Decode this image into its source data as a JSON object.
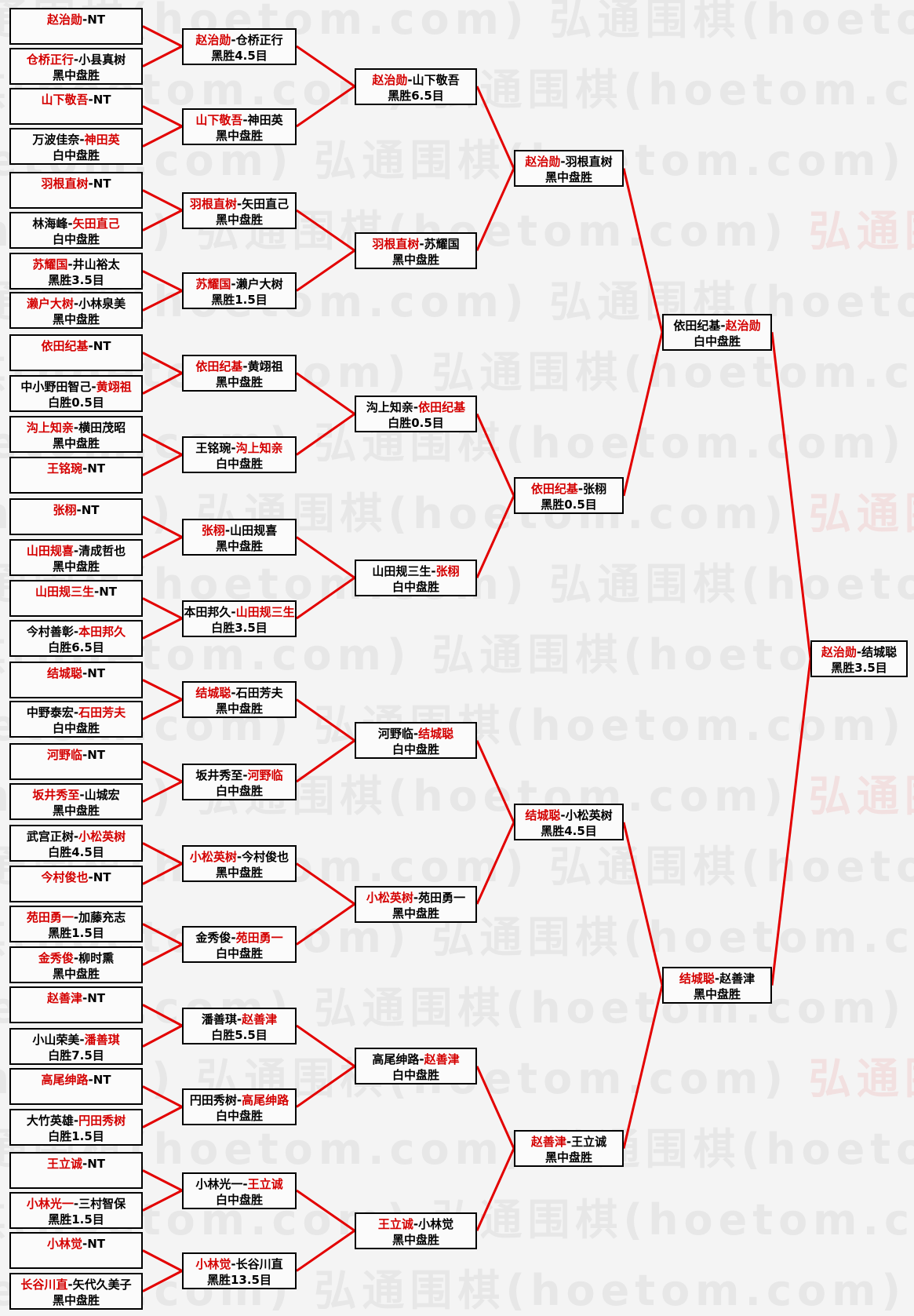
{
  "watermark": {
    "text": "弘通围棋(hoetom.com)"
  },
  "separator": "-",
  "colors": {
    "winner": "#d40000",
    "loser": "#000000",
    "line": "#e30000",
    "border": "#000000"
  },
  "bracket": {
    "rounds": [
      {
        "name": "round-1",
        "matches": [
          {
            "p1": "赵治勋",
            "p1_red": true,
            "p2": "NT",
            "p2_red": false,
            "result": ""
          },
          {
            "p1": "仓桥正行",
            "p1_red": true,
            "p2": "小县真树",
            "p2_red": false,
            "result": "黑中盘胜"
          },
          {
            "p1": "山下敬吾",
            "p1_red": true,
            "p2": "NT",
            "p2_red": false,
            "result": ""
          },
          {
            "p1": "万波佳奈",
            "p1_red": false,
            "p2": "神田英",
            "p2_red": true,
            "result": "白中盘胜"
          },
          {
            "p1": "羽根直树",
            "p1_red": true,
            "p2": "NT",
            "p2_red": false,
            "result": ""
          },
          {
            "p1": "林海峰",
            "p1_red": false,
            "p2": "矢田直己",
            "p2_red": true,
            "result": "白中盘胜"
          },
          {
            "p1": "苏耀国",
            "p1_red": true,
            "p2": "井山裕太",
            "p2_red": false,
            "result": "黑胜3.5目"
          },
          {
            "p1": "濑户大树",
            "p1_red": true,
            "p2": "小林泉美",
            "p2_red": false,
            "result": "黑中盘胜"
          },
          {
            "p1": "依田纪基",
            "p1_red": true,
            "p2": "NT",
            "p2_red": false,
            "result": ""
          },
          {
            "p1": "中小野田智己",
            "p1_red": false,
            "p2": "黄翊祖",
            "p2_red": true,
            "result": "白胜0.5目"
          },
          {
            "p1": "沟上知亲",
            "p1_red": true,
            "p2": "横田茂昭",
            "p2_red": false,
            "result": "黑中盘胜"
          },
          {
            "p1": "王铭琬",
            "p1_red": true,
            "p2": "NT",
            "p2_red": false,
            "result": ""
          },
          {
            "p1": "张栩",
            "p1_red": true,
            "p2": "NT",
            "p2_red": false,
            "result": ""
          },
          {
            "p1": "山田规喜",
            "p1_red": true,
            "p2": "清成哲也",
            "p2_red": false,
            "result": "黑中盘胜"
          },
          {
            "p1": "山田规三生",
            "p1_red": true,
            "p2": "NT",
            "p2_red": false,
            "result": ""
          },
          {
            "p1": "今村善彰",
            "p1_red": false,
            "p2": "本田邦久",
            "p2_red": true,
            "result": "白胜6.5目"
          },
          {
            "p1": "结城聪",
            "p1_red": true,
            "p2": "NT",
            "p2_red": false,
            "result": ""
          },
          {
            "p1": "中野泰宏",
            "p1_red": false,
            "p2": "石田芳夫",
            "p2_red": true,
            "result": "白中盘胜"
          },
          {
            "p1": "河野临",
            "p1_red": true,
            "p2": "NT",
            "p2_red": false,
            "result": ""
          },
          {
            "p1": "坂井秀至",
            "p1_red": true,
            "p2": "山城宏",
            "p2_red": false,
            "result": "黑中盘胜"
          },
          {
            "p1": "武宫正树",
            "p1_red": false,
            "p2": "小松英树",
            "p2_red": true,
            "result": "白胜4.5目"
          },
          {
            "p1": "今村俊也",
            "p1_red": true,
            "p2": "NT",
            "p2_red": false,
            "result": ""
          },
          {
            "p1": "苑田勇一",
            "p1_red": true,
            "p2": "加藤充志",
            "p2_red": false,
            "result": "黑胜1.5目"
          },
          {
            "p1": "金秀俊",
            "p1_red": true,
            "p2": "柳时熏",
            "p2_red": false,
            "result": "黑中盘胜"
          },
          {
            "p1": "赵善津",
            "p1_red": true,
            "p2": "NT",
            "p2_red": false,
            "result": ""
          },
          {
            "p1": "小山荣美",
            "p1_red": false,
            "p2": "潘善琪",
            "p2_red": true,
            "result": "白胜7.5目"
          },
          {
            "p1": "高尾绅路",
            "p1_red": true,
            "p2": "NT",
            "p2_red": false,
            "result": ""
          },
          {
            "p1": "大竹英雄",
            "p1_red": false,
            "p2": "円田秀树",
            "p2_red": true,
            "result": "白胜1.5目"
          },
          {
            "p1": "王立诚",
            "p1_red": true,
            "p2": "NT",
            "p2_red": false,
            "result": ""
          },
          {
            "p1": "小林光一",
            "p1_red": true,
            "p2": "三村智保",
            "p2_red": false,
            "result": "黑胜1.5目"
          },
          {
            "p1": "小林觉",
            "p1_red": true,
            "p2": "NT",
            "p2_red": false,
            "result": ""
          },
          {
            "p1": "长谷川直",
            "p1_red": true,
            "p2": "矢代久美子",
            "p2_red": false,
            "result": "黑中盘胜"
          }
        ]
      },
      {
        "name": "round-2",
        "matches": [
          {
            "p1": "赵治勋",
            "p1_red": true,
            "p2": "仓桥正行",
            "p2_red": false,
            "result": "黑胜4.5目"
          },
          {
            "p1": "山下敬吾",
            "p1_red": true,
            "p2": "神田英",
            "p2_red": false,
            "result": "黑中盘胜"
          },
          {
            "p1": "羽根直树",
            "p1_red": true,
            "p2": "矢田直己",
            "p2_red": false,
            "result": "黑中盘胜"
          },
          {
            "p1": "苏耀国",
            "p1_red": true,
            "p2": "濑户大树",
            "p2_red": false,
            "result": "黑胜1.5目"
          },
          {
            "p1": "依田纪基",
            "p1_red": true,
            "p2": "黄翊祖",
            "p2_red": false,
            "result": "黑中盘胜"
          },
          {
            "p1": "王铭琬",
            "p1_red": false,
            "p2": "沟上知亲",
            "p2_red": true,
            "result": "白中盘胜"
          },
          {
            "p1": "张栩",
            "p1_red": true,
            "p2": "山田规喜",
            "p2_red": false,
            "result": "黑中盘胜"
          },
          {
            "p1": "本田邦久",
            "p1_red": false,
            "p2": "山田规三生",
            "p2_red": true,
            "result": "白胜3.5目"
          },
          {
            "p1": "结城聪",
            "p1_red": true,
            "p2": "石田芳夫",
            "p2_red": false,
            "result": "黑中盘胜"
          },
          {
            "p1": "坂井秀至",
            "p1_red": false,
            "p2": "河野临",
            "p2_red": true,
            "result": "白中盘胜"
          },
          {
            "p1": "小松英树",
            "p1_red": true,
            "p2": "今村俊也",
            "p2_red": false,
            "result": "黑中盘胜"
          },
          {
            "p1": "金秀俊",
            "p1_red": false,
            "p2": "苑田勇一",
            "p2_red": true,
            "result": "白中盘胜"
          },
          {
            "p1": "潘善琪",
            "p1_red": false,
            "p2": "赵善津",
            "p2_red": true,
            "result": "白胜5.5目"
          },
          {
            "p1": "円田秀树",
            "p1_red": false,
            "p2": "高尾绅路",
            "p2_red": true,
            "result": "白中盘胜"
          },
          {
            "p1": "小林光一",
            "p1_red": false,
            "p2": "王立诚",
            "p2_red": true,
            "result": "白中盘胜"
          },
          {
            "p1": "小林觉",
            "p1_red": true,
            "p2": "长谷川直",
            "p2_red": false,
            "result": "黑胜13.5目"
          }
        ]
      },
      {
        "name": "round-3",
        "matches": [
          {
            "p1": "赵治勋",
            "p1_red": true,
            "p2": "山下敬吾",
            "p2_red": false,
            "result": "黑胜6.5目"
          },
          {
            "p1": "羽根直树",
            "p1_red": true,
            "p2": "苏耀国",
            "p2_red": false,
            "result": "黑中盘胜"
          },
          {
            "p1": "沟上知亲",
            "p1_red": false,
            "p2": "依田纪基",
            "p2_red": true,
            "result": "白胜0.5目"
          },
          {
            "p1": "山田规三生",
            "p1_red": false,
            "p2": "张栩",
            "p2_red": true,
            "result": "白中盘胜"
          },
          {
            "p1": "河野临",
            "p1_red": false,
            "p2": "结城聪",
            "p2_red": true,
            "result": "白中盘胜"
          },
          {
            "p1": "小松英树",
            "p1_red": true,
            "p2": "苑田勇一",
            "p2_red": false,
            "result": "黑中盘胜"
          },
          {
            "p1": "高尾绅路",
            "p1_red": false,
            "p2": "赵善津",
            "p2_red": true,
            "result": "白中盘胜"
          },
          {
            "p1": "王立诚",
            "p1_red": true,
            "p2": "小林觉",
            "p2_red": false,
            "result": "黑中盘胜"
          }
        ]
      },
      {
        "name": "quarterfinals",
        "matches": [
          {
            "p1": "赵治勋",
            "p1_red": true,
            "p2": "羽根直树",
            "p2_red": false,
            "result": "黑中盘胜"
          },
          {
            "p1": "依田纪基",
            "p1_red": true,
            "p2": "张栩",
            "p2_red": false,
            "result": "黑胜0.5目"
          },
          {
            "p1": "结城聪",
            "p1_red": true,
            "p2": "小松英树",
            "p2_red": false,
            "result": "黑胜4.5目"
          },
          {
            "p1": "赵善津",
            "p1_red": true,
            "p2": "王立诚",
            "p2_red": false,
            "result": "黑中盘胜"
          }
        ]
      },
      {
        "name": "semifinals",
        "matches": [
          {
            "p1": "依田纪基",
            "p1_red": false,
            "p2": "赵治勋",
            "p2_red": true,
            "result": "白中盘胜"
          },
          {
            "p1": "结城聪",
            "p1_red": true,
            "p2": "赵善津",
            "p2_red": false,
            "result": "黑中盘胜"
          }
        ]
      },
      {
        "name": "final",
        "matches": [
          {
            "p1": "赵治勋",
            "p1_red": true,
            "p2": "结城聪",
            "p2_red": false,
            "result": "黑胜3.5目"
          }
        ]
      }
    ]
  }
}
